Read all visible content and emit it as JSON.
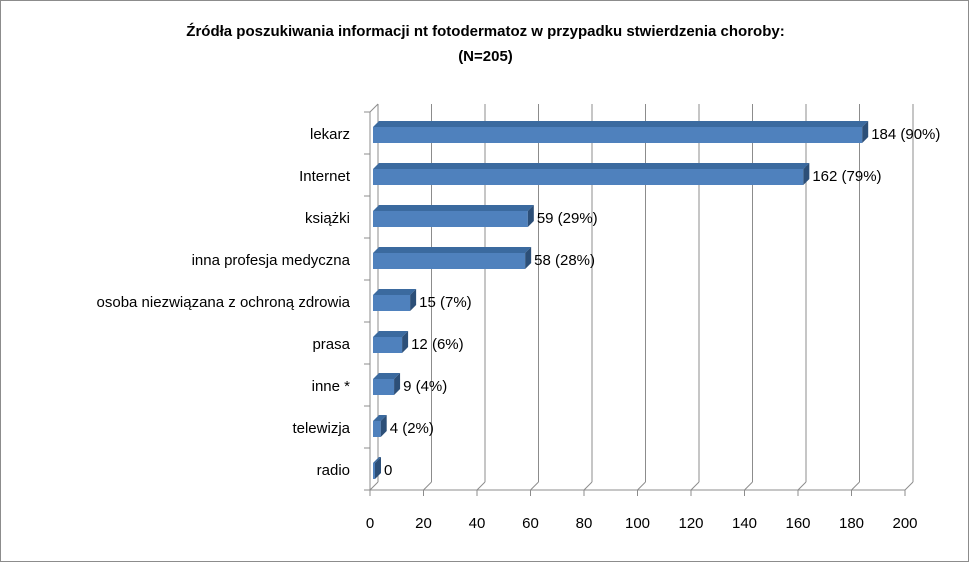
{
  "chart_data": {
    "type": "bar",
    "orientation": "horizontal",
    "title": "Źródła poszukiwania  informacji nt fotodermatoz w przypadku stwierdzenia choroby:",
    "subtitle": "(N=205)",
    "categories": [
      "lekarz",
      "Internet",
      "książki",
      "inna profesja  medyczna",
      "osoba niezwiązana z ochroną zdrowia",
      "prasa",
      "inne *",
      "telewizja",
      "radio"
    ],
    "values": [
      184,
      162,
      59,
      58,
      15,
      12,
      9,
      4,
      0
    ],
    "data_labels": [
      "184 (90%)",
      "162 (79%)",
      "59 (29%)",
      "58 (28%)",
      "15 (7%)",
      "12 (6%)",
      "9 (4%)",
      "4 (2%)",
      "0"
    ],
    "xlim": [
      0,
      200
    ],
    "xticks": [
      0,
      20,
      40,
      60,
      80,
      100,
      120,
      140,
      160,
      180,
      200
    ],
    "xlabel": "",
    "ylabel": "",
    "grid": "vertical",
    "legend": "none",
    "colors": {
      "bar_front": "#4f81bd",
      "bar_top": "#3b6a9f",
      "bar_side": "#2c4f78",
      "grid": "#8c8c8c"
    }
  }
}
